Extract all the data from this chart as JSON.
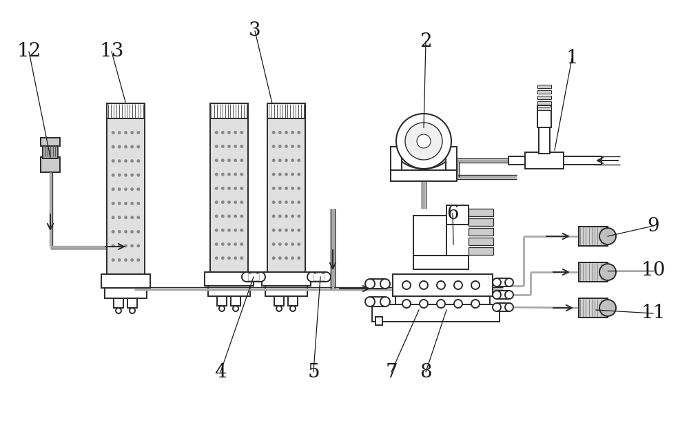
{
  "bg_color": "#ffffff",
  "lc": "#2a2a2a",
  "gray": "#aaaaaa",
  "dgray": "#555555",
  "lgray": "#dddddd",
  "fig_width": 10.0,
  "fig_height": 6.33,
  "labels": [
    [
      "1",
      830,
      85,
      805,
      218
    ],
    [
      "2",
      618,
      60,
      615,
      185
    ],
    [
      "3",
      370,
      45,
      395,
      150
    ],
    [
      "12",
      42,
      75,
      73,
      228
    ],
    [
      "13",
      162,
      75,
      182,
      148
    ],
    [
      "4",
      320,
      540,
      368,
      402
    ],
    [
      "5",
      455,
      540,
      465,
      402
    ],
    [
      "6",
      657,
      310,
      658,
      355
    ],
    [
      "7",
      568,
      540,
      608,
      450
    ],
    [
      "8",
      618,
      540,
      648,
      450
    ],
    [
      "9",
      948,
      328,
      882,
      343
    ],
    [
      "10",
      948,
      393,
      882,
      393
    ],
    [
      "11",
      948,
      455,
      865,
      450
    ]
  ]
}
